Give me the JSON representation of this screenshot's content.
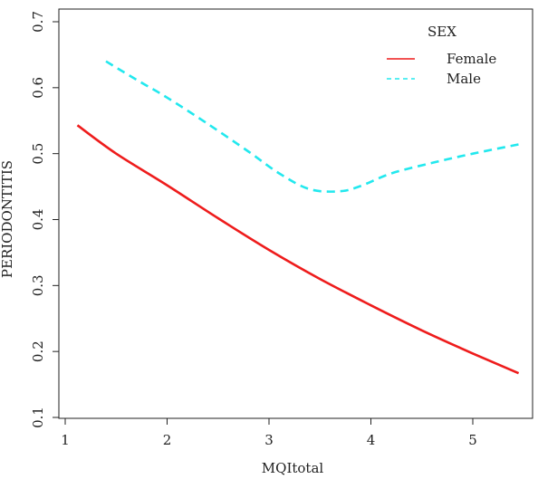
{
  "chart_data": {
    "type": "line",
    "title": "",
    "xlabel": "MQItotal",
    "ylabel": "PERIODONTITIS",
    "xlim": [
      1,
      5.5
    ],
    "ylim": [
      0.1,
      0.7
    ],
    "x_ticks": [
      "1",
      "2",
      "3",
      "4",
      "5"
    ],
    "y_ticks": [
      "0.1",
      "0.2",
      "0.3",
      "0.4",
      "0.5",
      "0.6",
      "0.7"
    ],
    "grid": false,
    "legend": {
      "title": "SEX",
      "placement": "top-right"
    },
    "series": [
      {
        "name": "Female",
        "color": "#ee1c1c",
        "dash": "solid",
        "x": [
          1.12,
          1.5,
          2.0,
          2.5,
          3.0,
          3.5,
          4.0,
          4.5,
          5.0,
          5.45
        ],
        "y": [
          0.543,
          0.5,
          0.452,
          0.402,
          0.354,
          0.31,
          0.27,
          0.232,
          0.197,
          0.167
        ]
      },
      {
        "name": "Male",
        "color": "#22e8ee",
        "dash": "dashed",
        "x": [
          1.4,
          1.7,
          2.0,
          2.4,
          2.8,
          3.1,
          3.4,
          3.7,
          3.9,
          4.2,
          4.6,
          5.0,
          5.45
        ],
        "y": [
          0.64,
          0.612,
          0.585,
          0.545,
          0.503,
          0.47,
          0.446,
          0.443,
          0.451,
          0.47,
          0.486,
          0.5,
          0.514
        ]
      }
    ]
  }
}
